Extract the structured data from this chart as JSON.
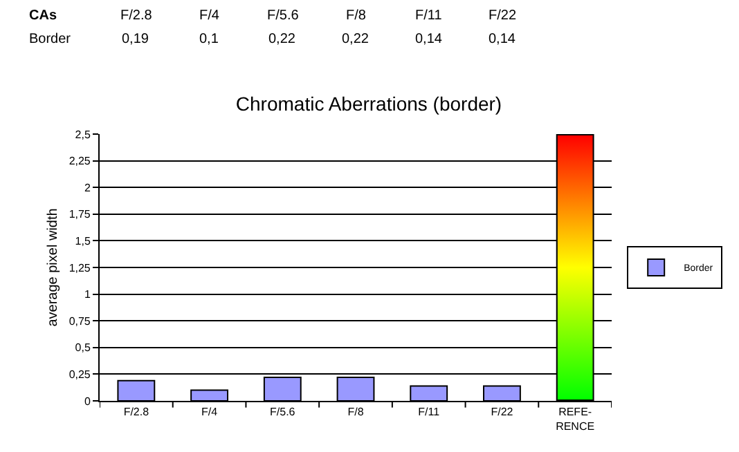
{
  "chart_data": {
    "type": "bar",
    "title": "Chromatic Aberrations (border)",
    "ylabel": "average pixel width",
    "categories": [
      "F/2.8",
      "F/4",
      "F/5.6",
      "F/8",
      "F/11",
      "F/22",
      "REFE-\nRENCE"
    ],
    "series": [
      {
        "name": "Border",
        "color": "#9999ff",
        "values": [
          0.19,
          0.1,
          0.22,
          0.22,
          0.14,
          0.14,
          null
        ],
        "value_labels": [
          "0,19",
          "0,1",
          "0,22",
          "0,22",
          "0,14",
          "0,14",
          null
        ]
      },
      {
        "color": "#ffff00",
        "values": [
          null,
          null,
          null,
          null,
          null,
          null,
          2.5
        ]
      }
    ],
    "annotations": [
      "CAs"
    ],
    "ylim": [
      0,
      2.5
    ],
    "yticks": [
      0,
      {
        "value": 0.25,
        "label": "0,25"
      },
      {
        "value": 0.5,
        "label": "0,5"
      },
      {
        "value": 0.75,
        "label": "0,75"
      },
      1,
      {
        "value": 1.25,
        "label": "1,25"
      },
      {
        "value": 1.5,
        "label": "1,5"
      },
      {
        "value": 1.75,
        "label": "1,75"
      },
      2,
      {
        "value": 2.25,
        "label": "2,25"
      },
      {
        "value": 2.5,
        "label": "2,5"
      }
    ],
    "grid": "y",
    "legend": "right"
  }
}
